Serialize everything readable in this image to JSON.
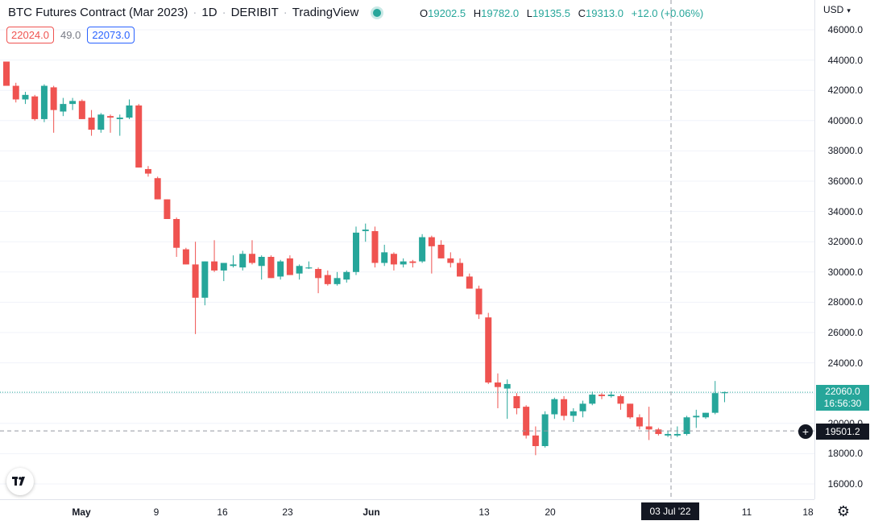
{
  "header": {
    "symbol": "BTC Futures Contract (Mar 2023)",
    "interval": "1D",
    "exchange": "DERIBIT",
    "source": "TradingView",
    "ohlc": {
      "o_label": "O",
      "o_value": "19202.5",
      "h_label": "H",
      "h_value": "19782.0",
      "l_label": "L",
      "l_value": "19135.5",
      "c_label": "C",
      "c_value": "19313.0",
      "change": "+12.0 (+0.06%)"
    }
  },
  "orderbook": {
    "bid": "22024.0",
    "spread": "49.0",
    "ask": "22073.0"
  },
  "price_scale": {
    "currency": "USD",
    "labels": [
      "46000.0",
      "44000.0",
      "42000.0",
      "40000.0",
      "38000.0",
      "36000.0",
      "34000.0",
      "32000.0",
      "30000.0",
      "28000.0",
      "26000.0",
      "24000.0",
      "22000.0",
      "20000.0",
      "18000.0",
      "16000.0"
    ],
    "last_price": "22060.0",
    "countdown": "16:56:30",
    "crosshair_price": "19501.2"
  },
  "time_scale": {
    "labels": [
      {
        "text": "May",
        "bold": true
      },
      {
        "text": "9",
        "bold": false
      },
      {
        "text": "16",
        "bold": false
      },
      {
        "text": "23",
        "bold": false
      },
      {
        "text": "Jun",
        "bold": true
      },
      {
        "text": "13",
        "bold": false
      },
      {
        "text": "20",
        "bold": false
      },
      {
        "text": "11",
        "bold": false
      },
      {
        "text": "18",
        "bold": false
      }
    ],
    "crosshair_date": "03 Jul '22"
  },
  "colors": {
    "up": "#26a69a",
    "down": "#ef5350",
    "grid": "#f0f3fa",
    "crosshair": "#9598a1",
    "last_price_line": "#26a69a"
  },
  "icons": {
    "logo": "tradingview-logo-icon",
    "settings": "gear-icon",
    "add": "plus-circle-icon"
  },
  "chart_data": {
    "type": "candlestick",
    "ylim": [
      15000,
      47000
    ],
    "candles": [
      {
        "o": 43900,
        "h": 43900,
        "l": 42300,
        "c": 42300
      },
      {
        "o": 42300,
        "h": 42500,
        "l": 41200,
        "c": 41400
      },
      {
        "o": 41400,
        "h": 41900,
        "l": 41100,
        "c": 41700
      },
      {
        "o": 41600,
        "h": 41700,
        "l": 40000,
        "c": 40100
      },
      {
        "o": 40100,
        "h": 42400,
        "l": 39900,
        "c": 42300
      },
      {
        "o": 42200,
        "h": 42300,
        "l": 39200,
        "c": 40700
      },
      {
        "o": 40600,
        "h": 41500,
        "l": 40300,
        "c": 41100
      },
      {
        "o": 41100,
        "h": 41500,
        "l": 40700,
        "c": 41300
      },
      {
        "o": 41300,
        "h": 41400,
        "l": 40100,
        "c": 40100
      },
      {
        "o": 40200,
        "h": 40700,
        "l": 39000,
        "c": 39400
      },
      {
        "o": 39400,
        "h": 40500,
        "l": 39200,
        "c": 40400
      },
      {
        "o": 40300,
        "h": 40400,
        "l": 39200,
        "c": 40200
      },
      {
        "o": 40100,
        "h": 40400,
        "l": 39000,
        "c": 40200
      },
      {
        "o": 40200,
        "h": 41400,
        "l": 40100,
        "c": 41000
      },
      {
        "o": 41000,
        "h": 41100,
        "l": 36900,
        "c": 36900
      },
      {
        "o": 36800,
        "h": 37000,
        "l": 36300,
        "c": 36500
      },
      {
        "o": 36200,
        "h": 36300,
        "l": 34800,
        "c": 34800
      },
      {
        "o": 34800,
        "h": 34800,
        "l": 33500,
        "c": 33500
      },
      {
        "o": 33500,
        "h": 33600,
        "l": 31000,
        "c": 31600
      },
      {
        "o": 31500,
        "h": 31600,
        "l": 30500,
        "c": 30500
      },
      {
        "o": 30500,
        "h": 32000,
        "l": 25900,
        "c": 28300
      },
      {
        "o": 28300,
        "h": 30700,
        "l": 27800,
        "c": 30700
      },
      {
        "o": 30700,
        "h": 32100,
        "l": 30000,
        "c": 30100
      },
      {
        "o": 30100,
        "h": 30600,
        "l": 29400,
        "c": 30600
      },
      {
        "o": 30400,
        "h": 31100,
        "l": 30300,
        "c": 30500
      },
      {
        "o": 30300,
        "h": 31400,
        "l": 30100,
        "c": 31200
      },
      {
        "o": 31200,
        "h": 32100,
        "l": 30500,
        "c": 30600
      },
      {
        "o": 30400,
        "h": 31100,
        "l": 29500,
        "c": 31000
      },
      {
        "o": 31000,
        "h": 31100,
        "l": 29600,
        "c": 29600
      },
      {
        "o": 29700,
        "h": 30800,
        "l": 29500,
        "c": 30700
      },
      {
        "o": 30900,
        "h": 31100,
        "l": 29800,
        "c": 29800
      },
      {
        "o": 29900,
        "h": 30500,
        "l": 29500,
        "c": 30400
      },
      {
        "o": 30300,
        "h": 30700,
        "l": 30200,
        "c": 30300
      },
      {
        "o": 30200,
        "h": 30300,
        "l": 28600,
        "c": 29600
      },
      {
        "o": 29800,
        "h": 30100,
        "l": 29100,
        "c": 29200
      },
      {
        "o": 29200,
        "h": 30000,
        "l": 29100,
        "c": 29600
      },
      {
        "o": 29500,
        "h": 30100,
        "l": 29300,
        "c": 30000
      },
      {
        "o": 30000,
        "h": 33000,
        "l": 29800,
        "c": 32600
      },
      {
        "o": 32700,
        "h": 33200,
        "l": 32000,
        "c": 32800
      },
      {
        "o": 32700,
        "h": 33000,
        "l": 30300,
        "c": 30600
      },
      {
        "o": 30600,
        "h": 31800,
        "l": 30400,
        "c": 31300
      },
      {
        "o": 31200,
        "h": 31300,
        "l": 30100,
        "c": 30500
      },
      {
        "o": 30500,
        "h": 30900,
        "l": 30300,
        "c": 30700
      },
      {
        "o": 30700,
        "h": 30800,
        "l": 30300,
        "c": 30600
      },
      {
        "o": 30700,
        "h": 32500,
        "l": 30600,
        "c": 32300
      },
      {
        "o": 32300,
        "h": 32400,
        "l": 29900,
        "c": 31700
      },
      {
        "o": 31800,
        "h": 32100,
        "l": 30900,
        "c": 30900
      },
      {
        "o": 30900,
        "h": 31300,
        "l": 30300,
        "c": 30600
      },
      {
        "o": 30600,
        "h": 30900,
        "l": 29700,
        "c": 29700
      },
      {
        "o": 29700,
        "h": 29900,
        "l": 28900,
        "c": 28900
      },
      {
        "o": 28900,
        "h": 29100,
        "l": 26900,
        "c": 27200
      },
      {
        "o": 27000,
        "h": 27300,
        "l": 22600,
        "c": 22700
      },
      {
        "o": 22700,
        "h": 23300,
        "l": 21000,
        "c": 22400
      },
      {
        "o": 22300,
        "h": 22900,
        "l": 20300,
        "c": 22600
      },
      {
        "o": 21800,
        "h": 22000,
        "l": 20600,
        "c": 21000
      },
      {
        "o": 21100,
        "h": 21200,
        "l": 19000,
        "c": 19200
      },
      {
        "o": 19200,
        "h": 19800,
        "l": 17900,
        "c": 18500
      },
      {
        "o": 18500,
        "h": 20800,
        "l": 18400,
        "c": 20600
      },
      {
        "o": 20600,
        "h": 21700,
        "l": 20300,
        "c": 21600
      },
      {
        "o": 21600,
        "h": 21800,
        "l": 20200,
        "c": 20500
      },
      {
        "o": 20500,
        "h": 21000,
        "l": 20100,
        "c": 20800
      },
      {
        "o": 20800,
        "h": 21500,
        "l": 20400,
        "c": 21300
      },
      {
        "o": 21300,
        "h": 22100,
        "l": 21200,
        "c": 21900
      },
      {
        "o": 21900,
        "h": 22000,
        "l": 21600,
        "c": 21800
      },
      {
        "o": 21800,
        "h": 22100,
        "l": 21700,
        "c": 21900
      },
      {
        "o": 21800,
        "h": 21900,
        "l": 20900,
        "c": 21300
      },
      {
        "o": 21300,
        "h": 21300,
        "l": 20300,
        "c": 20400
      },
      {
        "o": 20400,
        "h": 20600,
        "l": 19600,
        "c": 19800
      },
      {
        "o": 19800,
        "h": 21100,
        "l": 18900,
        "c": 19600
      },
      {
        "o": 19600,
        "h": 19700,
        "l": 19200,
        "c": 19300
      },
      {
        "o": 19200,
        "h": 19500,
        "l": 19100,
        "c": 19300
      },
      {
        "o": 19200,
        "h": 19800,
        "l": 19100,
        "c": 19300
      },
      {
        "o": 19300,
        "h": 20500,
        "l": 19200,
        "c": 20400
      },
      {
        "o": 20400,
        "h": 20900,
        "l": 19700,
        "c": 20500
      },
      {
        "o": 20400,
        "h": 20700,
        "l": 20300,
        "c": 20700
      },
      {
        "o": 20700,
        "h": 22800,
        "l": 20600,
        "c": 22000
      },
      {
        "o": 22000,
        "h": 22100,
        "l": 21400,
        "c": 22060
      }
    ]
  }
}
